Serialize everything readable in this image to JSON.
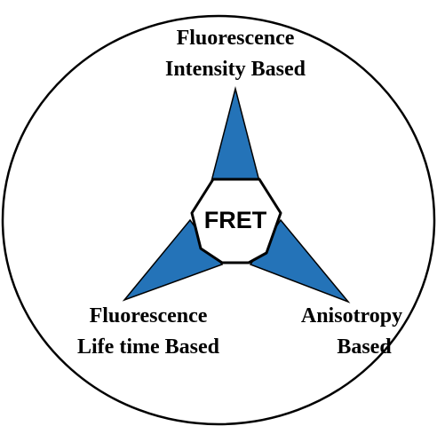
{
  "center": {
    "label": "FRET"
  },
  "nodes": [
    {
      "lines": [
        "Fluorescence",
        "Intensity Based"
      ]
    },
    {
      "lines": [
        "Fluorescence",
        "Life time Based"
      ]
    },
    {
      "lines": [
        "Anisotropy",
        "Based"
      ]
    }
  ]
}
